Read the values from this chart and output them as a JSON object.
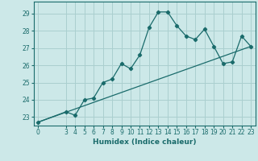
{
  "xlabel": "Humidex (Indice chaleur)",
  "bg_color": "#cce8e8",
  "line_color": "#1a6b6b",
  "grid_color": "#aacfcf",
  "xticks": [
    0,
    3,
    4,
    5,
    6,
    7,
    8,
    9,
    10,
    11,
    12,
    13,
    14,
    15,
    16,
    17,
    18,
    19,
    20,
    21,
    22,
    23
  ],
  "yticks": [
    23,
    24,
    25,
    26,
    27,
    28,
    29
  ],
  "ylim": [
    22.5,
    29.7
  ],
  "xlim": [
    -0.5,
    23.5
  ],
  "curve1_x": [
    0,
    3,
    4,
    5,
    6,
    7,
    8,
    9,
    10,
    11,
    12,
    13,
    14,
    15,
    16,
    17,
    18,
    19,
    20,
    21,
    22,
    23
  ],
  "curve1_y": [
    22.7,
    23.3,
    23.1,
    24.0,
    24.1,
    25.0,
    25.2,
    26.1,
    25.8,
    26.6,
    28.2,
    29.1,
    29.1,
    28.3,
    27.7,
    27.5,
    28.1,
    27.1,
    26.1,
    26.2,
    27.7,
    27.1
  ],
  "curve2_x": [
    0,
    23
  ],
  "curve2_y": [
    22.7,
    27.1
  ],
  "tick_fontsize": 5.5,
  "label_fontsize": 6.5
}
